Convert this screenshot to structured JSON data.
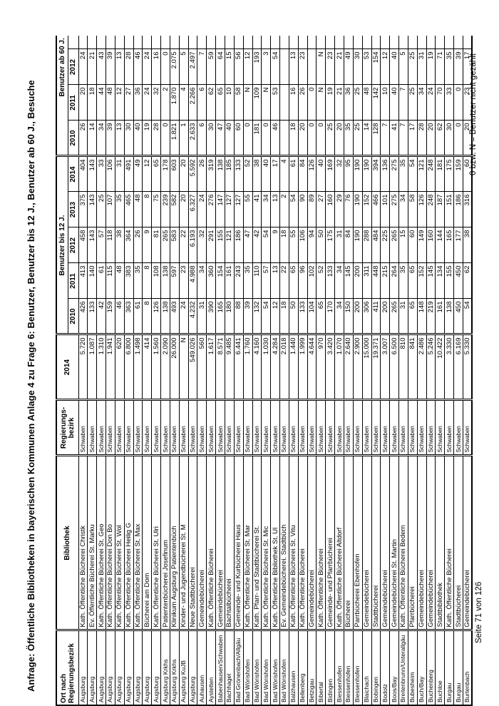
{
  "page": {
    "title": "Anfrage: Öffentliche Bibliotheken in bayerischen Kommunen Anlage 4 zu Frage 6: Benutzer, Benutzer bis 12 J., Benutzer ab 60 J., Besuche",
    "footer_left": "Seite 71 von 126",
    "footnote": "0 bzw. N = Benutzer nicht gezählt"
  },
  "table": {
    "headers": {
      "ort_line1": "Ort nach",
      "ort_line2": "Regierungsbezirk",
      "bibliothek": "Bibliothek",
      "regbez_line1": "Regierungs-",
      "regbez_line2": "bezirk",
      "col2014": "2014",
      "group_bis12": "Benutzer bis 12 J.",
      "group_ab60": "Benutzer ab 60 J.",
      "years_bis12": [
        "2010",
        "2011",
        "2012",
        "2013",
        "2014"
      ],
      "years_ab60": [
        "2010",
        "2011",
        "2012"
      ]
    },
    "rows": [
      {
        "ort": "Augsburg",
        "bib": "Kath. Öffentliche Bücherei Christk",
        "bez": "Schwaben",
        "y2014": "5.720",
        "bis12": [
          "426",
          "413",
          "458",
          "375",
          "404"
        ],
        "ab60": [
          "26",
          "20",
          "24"
        ]
      },
      {
        "ort": "Augsburg",
        "bib": "Ev. Öffentliche Bücherei St. Marku",
        "bez": "Schwaben",
        "y2014": "1.087",
        "bis12": [
          "133",
          "140",
          "143",
          "143",
          "143"
        ],
        "ab60": [
          "14",
          "18",
          "21"
        ]
      },
      {
        "ort": "Augsburg",
        "bib": "Kath. Öffentliche Bücherei St. Geo",
        "bez": "Schwaben",
        "y2014": "1.310",
        "bis12": [
          "42",
          "61",
          "57",
          "25",
          "33"
        ],
        "ab60": [
          "34",
          "44",
          "43"
        ]
      },
      {
        "ort": "Augsburg",
        "bib": "Kath. Öffentliche Bücherei Don Bo",
        "bez": "Schwaben",
        "y2014": "1.941",
        "bis12": [
          "159",
          "115",
          "118",
          "107",
          "106"
        ],
        "ab60": [
          "39",
          "48",
          "39"
        ]
      },
      {
        "ort": "Augsburg",
        "bib": "Kath. Öffentliche Bücherei St. Wol",
        "bez": "Schwaben",
        "y2014": "620",
        "bis12": [
          "46",
          "48",
          "38",
          "35",
          "31"
        ],
        "ab60": [
          "13",
          "12",
          "13"
        ]
      },
      {
        "ort": "Augsburg",
        "bib": "Kath. Öffentliche Bücherei Heilig G",
        "bez": "Schwaben",
        "y2014": "6.800",
        "bis12": [
          "363",
          "383",
          "364",
          "465",
          "491"
        ],
        "ab60": [
          "30",
          "27",
          "28"
        ]
      },
      {
        "ort": "Augsburg",
        "bib": "Kath. Öffentliche Bücherei St. Max",
        "bez": "Schwaben",
        "y2014": "1.498",
        "bis12": [
          "61",
          "35",
          "26",
          "48",
          "49"
        ],
        "ab60": [
          "40",
          "36",
          "46"
        ]
      },
      {
        "ort": "Augsburg",
        "bib": "Bücherei am Dom",
        "bez": "Schwaben",
        "y2014": "414",
        "bis12": [
          "8",
          "8",
          "9",
          "8",
          "12"
        ],
        "ab60": [
          "19",
          "24",
          "24"
        ]
      },
      {
        "ort": "Augsburg",
        "bib": "Kath. Öffentliche Bücherei St. Ulri",
        "bez": "Schwaben",
        "y2014": "1.560",
        "bis12": [
          "126",
          "108",
          "81",
          "75",
          "65"
        ],
        "ab60": [
          "28",
          "32",
          "16"
        ]
      },
      {
        "ort": "Augsburg Krkhs",
        "bib": "Patientenbücherei Josefinum",
        "bez": "Schwaben",
        "y2014": "2.090",
        "bis12": [
          "138",
          "138",
          "265",
          "239",
          "178"
        ],
        "ab60": [
          "0",
          "2",
          "0"
        ]
      },
      {
        "ort": "Augsburg Krkhs",
        "bib": "Klinikum Augsburg Patientenbüch",
        "bez": "Schwaben",
        "y2014": "26.000",
        "bis12": [
          "493",
          "597",
          "583",
          "582",
          "603"
        ],
        "ab60": [
          "1.821",
          "1.870",
          "2.075"
        ]
      },
      {
        "ort": "Augsburg KuJB",
        "bib": "Kinder- und Jugendbücherei St. M",
        "bez": "Schwaben",
        "y2014": "N",
        "bis12": [
          "24",
          "23",
          "22",
          "20",
          "20"
        ],
        "ab60": [
          "1",
          "4",
          "5"
        ]
      },
      {
        "ort": "Augsburg",
        "bib": "Neue Stadtbücherei",
        "bez": "Schwaben",
        "y2014": "549.026",
        "bis12": [
          "4.232",
          "4.988",
          "6.193",
          "6.327",
          "5.592"
        ],
        "ab60": [
          "2.633",
          "2.266",
          "2.497"
        ]
      },
      {
        "ort": "Auhausen",
        "bib": "Gemeindebücherei",
        "bez": "Schwaben",
        "y2014": "560",
        "bis12": [
          "31",
          "34",
          "32",
          "24",
          "26"
        ],
        "ab60": [
          "6",
          "6",
          "7"
        ]
      },
      {
        "ort": "Aystetten",
        "bib": "Kath. Öffentliche Bücherei",
        "bez": "Schwaben",
        "y2014": "1.617",
        "bis12": [
          "390",
          "360",
          "291",
          "276",
          "319"
        ],
        "ab60": [
          "30",
          "62",
          "59"
        ]
      },
      {
        "ort": "Babenhausen/Schwaben",
        "bib": "Gemeindebücherei",
        "bez": "Schwaben",
        "y2014": "8.571",
        "bis12": [
          "165",
          "154",
          "155",
          "147",
          "138"
        ],
        "ab60": [
          "47",
          "65",
          "64"
        ]
      },
      {
        "ort": "Bachhagel",
        "bib": "Bachtalbücherei",
        "bez": "Schwaben",
        "y2014": "9.485",
        "bis12": [
          "180",
          "161",
          "121",
          "127",
          "185"
        ],
        "ab60": [
          "40",
          "10",
          "15"
        ]
      },
      {
        "ort": "Bad Grönenbach/Allgäu",
        "bib": "Gemeinde- und Kurbücherei Haus",
        "bez": "Schwaben",
        "y2014": "6.441",
        "bis12": [
          "88",
          "243",
          "186",
          "127",
          "133"
        ],
        "ab60": [
          "60",
          "58",
          "56"
        ]
      },
      {
        "ort": "Bad Wörishofen",
        "bib": "Kath. Öffentliche Bücherei St. Mar",
        "bez": "Schwaben",
        "y2014": "1.760",
        "bis12": [
          "39",
          "35",
          "47",
          "55",
          "52"
        ],
        "ab60": [
          "0",
          "N",
          "12"
        ]
      },
      {
        "ort": "Bad Wörishofen",
        "bib": "Kath. Pfarr- und Stadtbücherei St.",
        "bez": "Schwaben",
        "y2014": "4.160",
        "bis12": [
          "132",
          "110",
          "42",
          "41",
          "38"
        ],
        "ab60": [
          "181",
          "109",
          "193"
        ]
      },
      {
        "ort": "Bad Wörishofen",
        "bib": "Kath. Öffentliche Bücherei St. Mic",
        "bez": "Schwaben",
        "y2014": "1.030",
        "bis12": [
          "54",
          "57",
          "54",
          "34",
          "40"
        ],
        "ab60": [
          "0",
          "N",
          "3"
        ]
      },
      {
        "ort": "Bad Wörishofen",
        "bib": "Kath. Öffentliche Bibliothek St. Ul",
        "bez": "Schwaben",
        "y2014": "4.284",
        "bis12": [
          "12",
          "13",
          "9",
          "13",
          "17"
        ],
        "ab60": [
          "46",
          "53",
          "54"
        ]
      },
      {
        "ort": "Bad Wörishofen",
        "bib": "Ev. Gemeindebücherei. Stadtbüch",
        "bez": "Schwaben",
        "y2014": "2.018",
        "bis12": [
          "18",
          "22",
          "18",
          "2",
          "4"
        ],
        "ab60": [
          "",
          "",
          ""
        ]
      },
      {
        "ort": "Balzhausen",
        "bib": "Kath. Öffentliche Bücherei St. Vitu",
        "bez": "Schwaben",
        "y2014": "1.440",
        "bis12": [
          "50",
          "65",
          "55",
          "54",
          "61"
        ],
        "ab60": [
          "18",
          "16",
          "13"
        ]
      },
      {
        "ort": "Bellenberg",
        "bib": "Kath. Öffentliche Bücherei",
        "bez": "Schwaben",
        "y2014": "1.999",
        "bis12": [
          "133",
          "96",
          "106",
          "90",
          "84"
        ],
        "ab60": [
          "20",
          "26",
          "23"
        ]
      },
      {
        "ort": "Betzigau",
        "bib": "Gemeindebücherei",
        "bez": "Schwaben",
        "y2014": "4.644",
        "bis12": [
          "104",
          "102",
          "94",
          "89",
          "126"
        ],
        "ab60": [
          "0",
          "0",
          ""
        ]
      },
      {
        "ort": "Bibertal",
        "bib": "Kath. Öffentliche Bücherei",
        "bez": "Schwaben",
        "y2014": "970",
        "bis12": [
          "65",
          "52",
          "50",
          "27",
          "40"
        ],
        "ab60": [
          "0",
          "N",
          "N"
        ]
      },
      {
        "ort": "Bidingen",
        "bib": "Gemeinde- und Pfarrbücherei",
        "bez": "Schwaben",
        "y2014": "3.420",
        "bis12": [
          "170",
          "133",
          "175",
          "160",
          "169"
        ],
        "ab60": [
          "25",
          "19",
          "23"
        ]
      },
      {
        "ort": "Biessenhofen",
        "bib": "Kath. Öffentliche Bücherei Altdorf",
        "bez": "Schwaben",
        "y2014": "1.070",
        "bis12": [
          "34",
          "34",
          "31",
          "29",
          "32"
        ],
        "ab60": [
          "20",
          "21",
          "21"
        ]
      },
      {
        "ort": "Biessenhofen",
        "bib": "Bücherei",
        "bez": "Schwaben",
        "y2014": "2.640",
        "bis12": [
          "150",
          "145",
          "84",
          "76",
          "95"
        ],
        "ab60": [
          "35",
          "36",
          "49"
        ]
      },
      {
        "ort": "Biessenhofen",
        "bib": "Parrbücherei Ebenhofen",
        "bez": "Schwaben",
        "y2014": "2.900",
        "bis12": [
          "200",
          "200",
          "190",
          "190",
          "190"
        ],
        "ab60": [
          "25",
          "25",
          "30"
        ]
      },
      {
        "ort": "Blaichach",
        "bib": "Gemeindebücherei",
        "bez": "Schwaben",
        "y2014": "15.000",
        "bis12": [
          "306",
          "311",
          "288",
          "152",
          "190"
        ],
        "ab60": [
          "14",
          "48",
          "53"
        ]
      },
      {
        "ort": "Bobingen",
        "bib": "Stadtbücherei",
        "bez": "Schwaben",
        "y2014": "19.371",
        "bis12": [
          "411",
          "448",
          "484",
          "466",
          "394"
        ],
        "ab60": [
          "128",
          "142",
          "154"
        ]
      },
      {
        "ort": "Bodolz",
        "bib": "Gemeindebücherei",
        "bez": "Schwaben",
        "y2014": "3.007",
        "bis12": [
          "200",
          "215",
          "225",
          "101",
          "136"
        ],
        "ab60": [
          "7",
          "10",
          "12"
        ]
      },
      {
        "ort": "Boos/Bay",
        "bib": "Gemeindebücherei St. Martin",
        "bez": "Schwaben",
        "y2014": "6.500",
        "bis12": [
          "265",
          "264",
          "265",
          "275",
          "275"
        ],
        "ab60": [
          "41",
          "40",
          "40"
        ]
      },
      {
        "ort": "Breitenbrunn/Unterallgäu",
        "bib": "Kath. Öffentliche Bücherei Bedern",
        "bez": "Schwaben",
        "y2014": "810",
        "bis12": [
          "31",
          "35",
          "15",
          "34",
          "35"
        ],
        "ab60": [
          "7",
          "7",
          "5"
        ]
      },
      {
        "ort": "Bubesheim",
        "bib": "Pfarrbücherei",
        "bez": "Schwaben",
        "y2014": "841",
        "bis12": [
          "65",
          "65",
          "60",
          "58",
          "54"
        ],
        "ab60": [
          "17",
          "25",
          "25"
        ]
      },
      {
        "ort": "Buch/Bay",
        "bib": "Gemeindebücherei",
        "bez": "Schwaben",
        "y2014": "2.486",
        "bis12": [
          "148",
          "152",
          "149",
          "126",
          "121"
        ],
        "ab60": [
          "28",
          "34",
          "31"
        ]
      },
      {
        "ort": "Buchenberg",
        "bib": "Gemeindebücherei",
        "bez": "Schwaben",
        "y2014": "5.246",
        "bis12": [
          "219",
          "145",
          "160",
          "248",
          "248"
        ],
        "ab60": [
          "20",
          "24",
          "19"
        ]
      },
      {
        "ort": "Buchloe",
        "bib": "Stadtbibliothek",
        "bez": "Schwaben",
        "y2014": "10.422",
        "bis12": [
          "161",
          "134",
          "144",
          "187",
          "181"
        ],
        "ab60": [
          "62",
          "70",
          "71"
        ]
      },
      {
        "ort": "Burgau",
        "bib": "Kath. Öffentliche Bücherei",
        "bez": "Schwaben",
        "y2014": "3.330",
        "bis12": [
          "138",
          "155",
          "165",
          "151",
          "175"
        ],
        "ab60": [
          "30",
          "33",
          "35"
        ]
      },
      {
        "ort": "Burgau",
        "bib": "Stadtbücherei",
        "bez": "Schwaben",
        "y2014": "6.169",
        "bis12": [
          "450",
          "450",
          "177",
          "186",
          "159"
        ],
        "ab60": [
          "0",
          "0",
          "39"
        ]
      },
      {
        "ort": "Burtenbach",
        "bib": "Gemeindebücherei",
        "bez": "Schwaben",
        "y2014": "5.330",
        "bis12": [
          "54",
          "62",
          "38",
          "316",
          "60"
        ],
        "ab60": [
          "20",
          "23",
          "17"
        ]
      }
    ]
  }
}
